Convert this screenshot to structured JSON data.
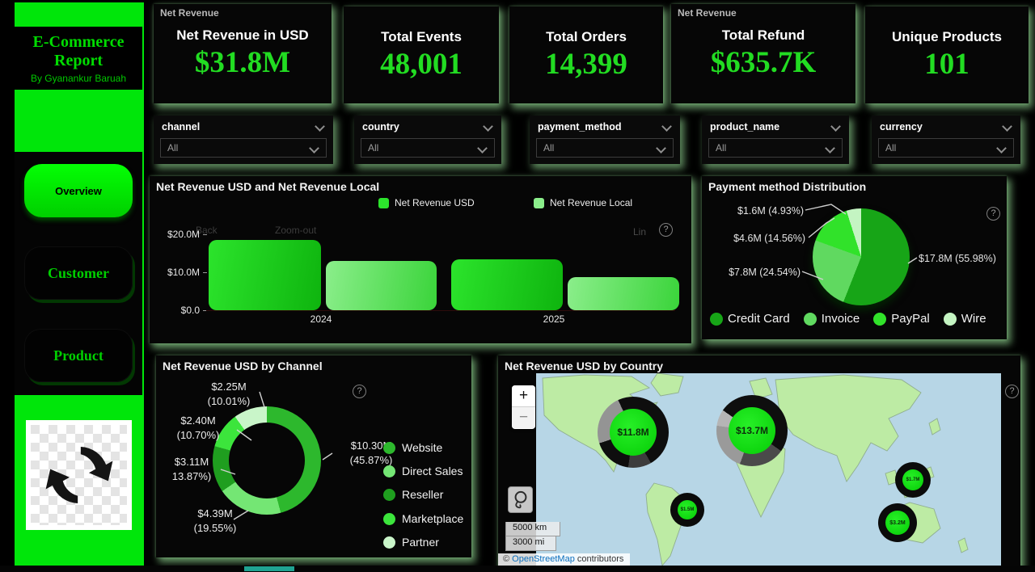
{
  "theme": {
    "accent_green": "#00e60a",
    "value_green": "#22dc22",
    "card_bg": "#060606",
    "glow": "#aafaaa",
    "map_ocean": "#b7d6e6",
    "map_land": "#bdeba4",
    "teal_tab": "#1fa392"
  },
  "icons": {
    "help": "?",
    "copyright": "©"
  },
  "sidebar": {
    "title": "E-Commerce Report",
    "subtitle": "By Gyanankur Baruah",
    "nav": [
      {
        "label": "Overview",
        "active": true
      },
      {
        "label": "Customer",
        "active": false
      },
      {
        "label": "Product",
        "active": false
      }
    ]
  },
  "kpis": [
    {
      "corner_label": "Net Revenue",
      "label": "Net Revenue in USD",
      "value": "$31.8M"
    },
    {
      "corner_label": "",
      "label": "Total Events",
      "value": "48,001"
    },
    {
      "corner_label": "",
      "label": "Total Orders",
      "value": "14,399"
    },
    {
      "corner_label": "Net Revenue",
      "label": "Total Refund",
      "value": "$635.7K"
    },
    {
      "corner_label": "",
      "label": "Unique Products",
      "value": "101"
    }
  ],
  "slicers": [
    {
      "field": "channel",
      "value": "All"
    },
    {
      "field": "country",
      "value": "All"
    },
    {
      "field": "payment_method",
      "value": "All"
    },
    {
      "field": "product_name",
      "value": "All"
    },
    {
      "field": "currency",
      "value": "All"
    }
  ],
  "chart_data": [
    {
      "type": "bar",
      "title": "Net Revenue USD and Net Revenue Local",
      "categories": [
        "2024",
        "2025"
      ],
      "series": [
        {
          "name": "Net Revenue USD",
          "values": [
            18.5,
            13.3
          ],
          "color": "#2ce42c",
          "color2": "#0eb40e"
        },
        {
          "name": "Net Revenue Local",
          "values": [
            13.0,
            8.7
          ],
          "color": "#8bee8b",
          "color2": "#3ad43a"
        }
      ],
      "unit": "USD millions",
      "ylim": [
        0,
        20
      ],
      "yticks": [
        "$20.0M",
        "$10.0M",
        "$0.0"
      ],
      "toolbar": {
        "back": "Back",
        "zoom_out": "Zoom-out",
        "scale": "Lin"
      }
    },
    {
      "type": "pie",
      "title": "Payment method Distribution",
      "slices": [
        {
          "label": "Credit Card",
          "value": 17.8,
          "pct": 55.98,
          "callout": "$17.8M (55.98%)",
          "color": "#17a517"
        },
        {
          "label": "Invoice",
          "value": 7.8,
          "pct": 24.54,
          "callout": "$7.8M (24.54%)",
          "color": "#60d960"
        },
        {
          "label": "PayPal",
          "value": 4.6,
          "pct": 14.56,
          "callout": "$4.6M (14.56%)",
          "color": "#31e22a"
        },
        {
          "label": "Wire",
          "value": 1.6,
          "pct": 4.93,
          "callout": "$1.6M (4.93%)",
          "color": "#c4f4c2"
        }
      ]
    },
    {
      "type": "donut",
      "title": "Net Revenue USD by Channel",
      "slices": [
        {
          "label": "Website",
          "value": 10.3,
          "pct": 45.87,
          "callout_value": "$10.30M",
          "callout_pct": "(45.87%)",
          "color": "#2db82d"
        },
        {
          "label": "Direct Sales",
          "value": 4.39,
          "pct": 19.55,
          "callout_value": "$4.39M",
          "callout_pct": "(19.55%)",
          "color": "#74e674"
        },
        {
          "label": "Reseller",
          "value": 3.11,
          "pct": 13.87,
          "callout_value": "$3.11M",
          "callout_pct": "13.87%)",
          "color": "#1f9e1f"
        },
        {
          "label": "Marketplace",
          "value": 2.4,
          "pct": 10.7,
          "callout_value": "$2.40M",
          "callout_pct": "(10.70%)",
          "color": "#3ce53c"
        },
        {
          "label": "Partner",
          "value": 2.25,
          "pct": 10.01,
          "callout_value": "$2.25M",
          "callout_pct": "(10.01%)",
          "color": "#c9f5c9"
        }
      ]
    },
    {
      "type": "map",
      "title": "Net Revenue USD by Country",
      "bubbles": [
        {
          "label": "$11.8M",
          "value": 11.8
        },
        {
          "label": "$13.7M",
          "value": 13.7
        },
        {
          "label": "$1.5M",
          "value": 1.5
        },
        {
          "label": "$1.7M",
          "value": 1.7
        },
        {
          "label": "$3.2M",
          "value": 3.2
        }
      ],
      "controls": {
        "zoom_in": "+",
        "zoom_out": "−"
      },
      "scale_km": "5000 km",
      "scale_mi": "3000 mi",
      "attribution": {
        "prefix": "©",
        "link": "OpenStreetMap",
        "suffix": "contributors"
      }
    }
  ]
}
